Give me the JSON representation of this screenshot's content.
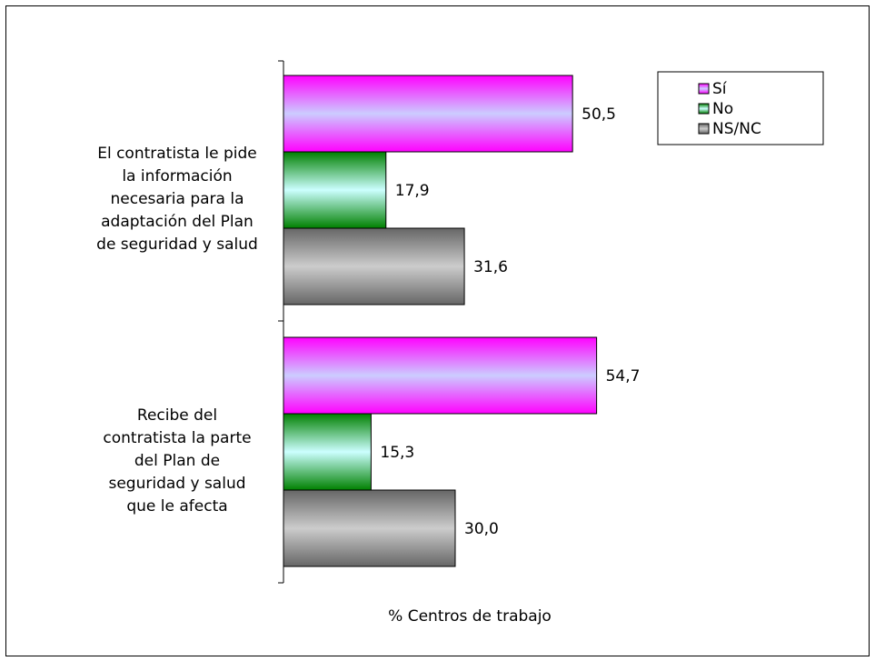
{
  "chart_data": {
    "type": "bar",
    "orientation": "horizontal",
    "categories": [
      "El contratista le pide la información necesaria para la adaptación del Plan de seguridad y salud",
      "Recibe del contratista la parte del Plan de seguridad y salud que le afecta"
    ],
    "category_lines": [
      [
        "El contratista le pide",
        "la información",
        "necesaria para la",
        "adaptación del Plan",
        "de seguridad y salud"
      ],
      [
        "Recibe del",
        "contratista la parte",
        "del Plan de",
        "seguridad y salud",
        "que le afecta"
      ]
    ],
    "series": [
      {
        "name": "Sí",
        "values": [
          50.5,
          54.7
        ],
        "labels": [
          "50,5",
          "54,7"
        ],
        "color_edge": "#ff00ff",
        "color_center": "#ccccff"
      },
      {
        "name": "No",
        "values": [
          17.9,
          15.3
        ],
        "labels": [
          "17,9",
          "15,3"
        ],
        "color_edge": "#008000",
        "color_center": "#ccffff"
      },
      {
        "name": "NS/NC",
        "values": [
          31.6,
          30.0
        ],
        "labels": [
          "31,6",
          "30,0"
        ],
        "color_edge": "#666666",
        "color_center": "#cccccc"
      }
    ],
    "xlabel": "% Centros de trabajo",
    "xlim": [
      0,
      100
    ],
    "legend_position": "top-right",
    "grid": false,
    "title": ""
  }
}
